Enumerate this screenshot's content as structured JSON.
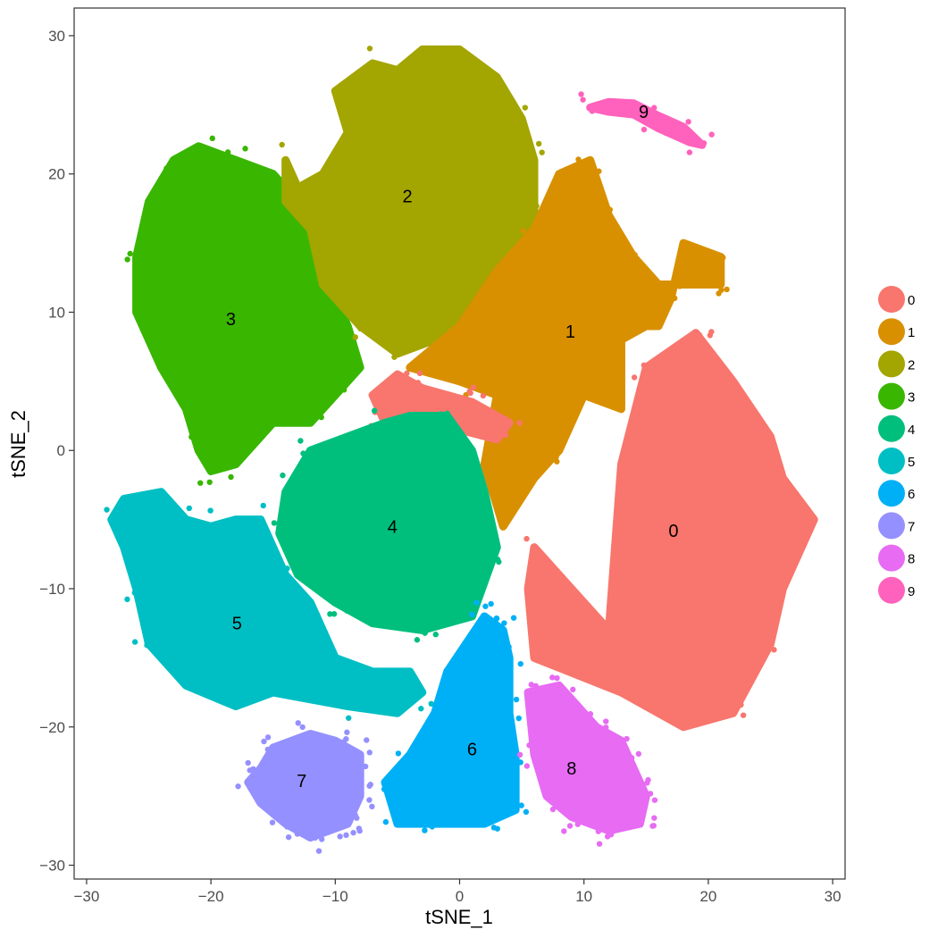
{
  "chart_data": {
    "type": "scatter",
    "title": "",
    "xlabel": "tSNE_1",
    "ylabel": "tSNE_2",
    "xlim": [
      -31,
      31
    ],
    "ylim": [
      -31,
      32
    ],
    "x_ticks": [
      -30,
      -20,
      -10,
      0,
      10,
      20,
      30
    ],
    "x_tick_labels": [
      "−30",
      "−20",
      "−10",
      "0",
      "10",
      "20",
      "30"
    ],
    "y_ticks": [
      -30,
      -20,
      -10,
      0,
      10,
      20,
      30
    ],
    "y_tick_labels": [
      "−30",
      "−20",
      "−10",
      "0",
      "10",
      "20",
      "30"
    ],
    "grid": false,
    "legend_position": "right",
    "clusters": [
      {
        "name": "0",
        "color": "#F8766D",
        "label_pos": [
          17.2,
          -5.8
        ]
      },
      {
        "name": "1",
        "color": "#D89000",
        "label_pos": [
          8.9,
          8.6
        ]
      },
      {
        "name": "2",
        "color": "#A3A500",
        "label_pos": [
          -4.2,
          18.4
        ]
      },
      {
        "name": "3",
        "color": "#39B600",
        "label_pos": [
          -18.4,
          9.5
        ]
      },
      {
        "name": "4",
        "color": "#00BF7D",
        "label_pos": [
          -5.4,
          -5.5
        ]
      },
      {
        "name": "5",
        "color": "#00BFC4",
        "label_pos": [
          -17.9,
          -12.5
        ]
      },
      {
        "name": "6",
        "color": "#00B0F6",
        "label_pos": [
          1.0,
          -21.6
        ]
      },
      {
        "name": "7",
        "color": "#9590FF",
        "label_pos": [
          -12.7,
          -23.9
        ]
      },
      {
        "name": "8",
        "color": "#E76BF3",
        "label_pos": [
          9.0,
          -23.0
        ]
      },
      {
        "name": "9",
        "color": "#FF62BC",
        "label_pos": [
          14.8,
          24.5
        ]
      }
    ]
  }
}
